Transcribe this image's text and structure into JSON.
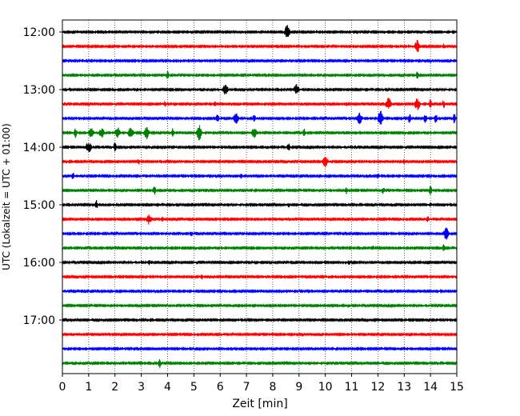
{
  "chart_data": {
    "type": "line",
    "title": "",
    "xlabel": "Zeit  [min]",
    "ylabel": "UTC (Lokalzeit = UTC + 01:00)",
    "xlim": [
      0,
      15
    ],
    "x_ticks": [
      "0",
      "1",
      "2",
      "3",
      "4",
      "5",
      "6",
      "7",
      "8",
      "9",
      "10",
      "11",
      "12",
      "13",
      "14",
      "15"
    ],
    "y_time_range": [
      "11:45",
      "17:45"
    ],
    "y_ticks": [
      "12:00",
      "13:00",
      "14:00",
      "15:00",
      "16:00",
      "17:00"
    ],
    "grid": "vertical dotted at each minute",
    "colors": [
      "#000000",
      "#ff0000",
      "#0000ff",
      "#008000"
    ],
    "traces": [
      {
        "start": "12:00",
        "color": "#000000",
        "events": [
          [
            8.55,
            1.4
          ]
        ]
      },
      {
        "start": "12:15",
        "color": "#ff0000",
        "events": [
          [
            13.5,
            1.4
          ],
          [
            14.5,
            0.5
          ]
        ]
      },
      {
        "start": "12:30",
        "color": "#0000ff",
        "events": []
      },
      {
        "start": "12:45",
        "color": "#008000",
        "events": [
          [
            4.0,
            0.8
          ],
          [
            13.5,
            0.7
          ]
        ]
      },
      {
        "start": "13:00",
        "color": "#000000",
        "events": [
          [
            6.2,
            1.2
          ],
          [
            8.9,
            1.1
          ]
        ]
      },
      {
        "start": "13:15",
        "color": "#ff0000",
        "events": [
          [
            3.9,
            0.6
          ],
          [
            5.8,
            0.6
          ],
          [
            12.4,
            1.4
          ],
          [
            13.5,
            1.4
          ],
          [
            14.0,
            0.9
          ],
          [
            14.5,
            0.8
          ]
        ]
      },
      {
        "start": "13:30",
        "color": "#0000ff",
        "events": [
          [
            5.9,
            0.8
          ],
          [
            6.6,
            1.1
          ],
          [
            7.3,
            0.7
          ],
          [
            11.3,
            1.2
          ],
          [
            12.1,
            1.6
          ],
          [
            13.2,
            1.0
          ],
          [
            13.8,
            1.0
          ],
          [
            14.2,
            1.0
          ],
          [
            14.9,
            1.0
          ]
        ]
      },
      {
        "start": "13:45",
        "color": "#008000",
        "events": [
          [
            0.5,
            1.0
          ],
          [
            1.1,
            1.1
          ],
          [
            1.5,
            1.1
          ],
          [
            2.1,
            1.2
          ],
          [
            2.6,
            1.2
          ],
          [
            3.2,
            1.3
          ],
          [
            4.2,
            0.9
          ],
          [
            5.2,
            1.6
          ],
          [
            7.3,
            1.1
          ],
          [
            9.2,
            0.8
          ]
        ]
      },
      {
        "start": "14:00",
        "color": "#000000",
        "events": [
          [
            1.0,
            1.3
          ],
          [
            2.0,
            1.0
          ],
          [
            8.6,
            0.9
          ]
        ]
      },
      {
        "start": "14:15",
        "color": "#ff0000",
        "events": [
          [
            2.9,
            0.5
          ],
          [
            10.0,
            1.1
          ],
          [
            13.0,
            0.4
          ]
        ]
      },
      {
        "start": "14:30",
        "color": "#0000ff",
        "events": [
          [
            0.4,
            0.7
          ],
          [
            6.8,
            0.5
          ],
          [
            12.0,
            0.5
          ]
        ]
      },
      {
        "start": "14:45",
        "color": "#008000",
        "events": [
          [
            3.5,
            0.9
          ],
          [
            10.8,
            0.7
          ],
          [
            12.2,
            0.8
          ],
          [
            14.0,
            0.9
          ]
        ]
      },
      {
        "start": "15:00",
        "color": "#000000",
        "events": [
          [
            1.3,
            0.9
          ],
          [
            8.6,
            0.5
          ],
          [
            14.0,
            0.4
          ]
        ]
      },
      {
        "start": "15:15",
        "color": "#ff0000",
        "events": [
          [
            3.3,
            1.1
          ],
          [
            3.8,
            0.5
          ],
          [
            13.9,
            0.6
          ]
        ]
      },
      {
        "start": "15:30",
        "color": "#0000ff",
        "events": [
          [
            4.9,
            0.5
          ],
          [
            14.6,
            1.3
          ]
        ]
      },
      {
        "start": "15:45",
        "color": "#008000",
        "events": [
          [
            11.8,
            0.5
          ],
          [
            14.5,
            0.7
          ]
        ]
      },
      {
        "start": "16:00",
        "color": "#000000",
        "events": [
          [
            3.3,
            0.5
          ],
          [
            10.9,
            0.4
          ]
        ]
      },
      {
        "start": "16:15",
        "color": "#ff0000",
        "events": [
          [
            5.3,
            0.6
          ]
        ]
      },
      {
        "start": "16:30",
        "color": "#0000ff",
        "events": []
      },
      {
        "start": "16:45",
        "color": "#008000",
        "events": []
      },
      {
        "start": "17:00",
        "color": "#000000",
        "events": []
      },
      {
        "start": "17:15",
        "color": "#ff0000",
        "events": []
      },
      {
        "start": "17:30",
        "color": "#0000ff",
        "events": []
      },
      {
        "start": "17:45",
        "color": "#008000",
        "events": [
          [
            3.7,
            1.0
          ]
        ]
      }
    ]
  }
}
